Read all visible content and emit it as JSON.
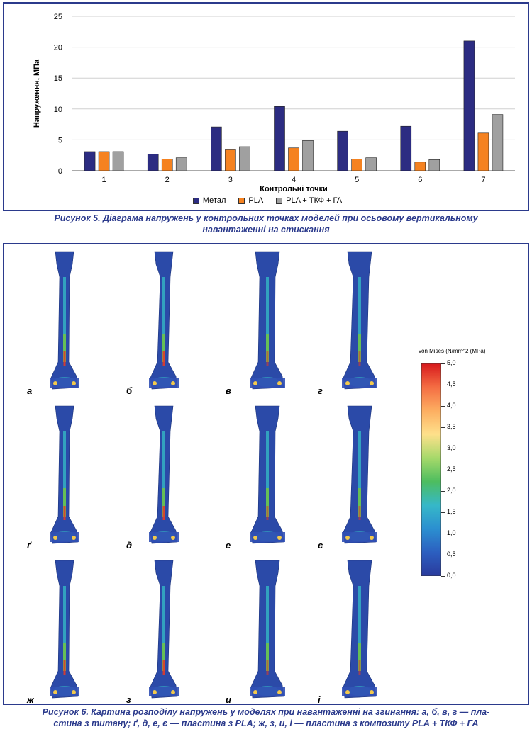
{
  "fig5": {
    "caption": [
      "Рисунок 5. Діаграма напружень у контрольних точках моделей при осьовому вертикальному",
      "навантаженні на стискання"
    ]
  },
  "chart_data": {
    "type": "bar",
    "categories": [
      "1",
      "2",
      "3",
      "4",
      "5",
      "6",
      "7"
    ],
    "series": [
      {
        "name": "Метал",
        "values": [
          3.1,
          2.7,
          7.1,
          10.4,
          6.4,
          7.2,
          21.0
        ],
        "color": "#2c2c82"
      },
      {
        "name": "PLA",
        "values": [
          3.1,
          1.9,
          3.5,
          3.7,
          1.9,
          1.4,
          6.1
        ],
        "color": "#f58220"
      },
      {
        "name": "PLA + ТКФ + ГА",
        "values": [
          3.1,
          2.1,
          3.9,
          4.9,
          2.1,
          1.8,
          9.1
        ],
        "color": "#a0a0a0"
      }
    ],
    "xlabel": "Контрольні точки",
    "ylabel": "Напруження, МПа",
    "ylim": [
      0,
      25
    ],
    "yticks": [
      0,
      5,
      10,
      15,
      20,
      25
    ],
    "grid": true,
    "legend_position": "bottom"
  },
  "fig6": {
    "caption": [
      "Рисунок 6. Картина розподілу напружень у моделях при навантаженні на згинання: а, б, в, г — пла-",
      "стина з титану; ґ, д, е, є — пластина з PLA; ж, з, и, і — пластина з композиту PLA + ТКФ + ГА"
    ],
    "panels": [
      "а",
      "б",
      "в",
      "г",
      "ґ",
      "д",
      "е",
      "є",
      "ж",
      "з",
      "и",
      "і"
    ],
    "colorbar": {
      "title": "von Mises (N/mm^2 (MPa)",
      "ticks": [
        "5,0",
        "4,5",
        "4,0",
        "3,5",
        "3,0",
        "2,5",
        "2,0",
        "1,5",
        "1,0",
        "0,5",
        "0,0"
      ],
      "colors": [
        "#d7191c",
        "#f46d43",
        "#fdae61",
        "#fee08b",
        "#a6d96a",
        "#4dbd5f",
        "#36b8c8",
        "#2b8fd0",
        "#2c5fc0",
        "#2a3a9c"
      ]
    }
  }
}
